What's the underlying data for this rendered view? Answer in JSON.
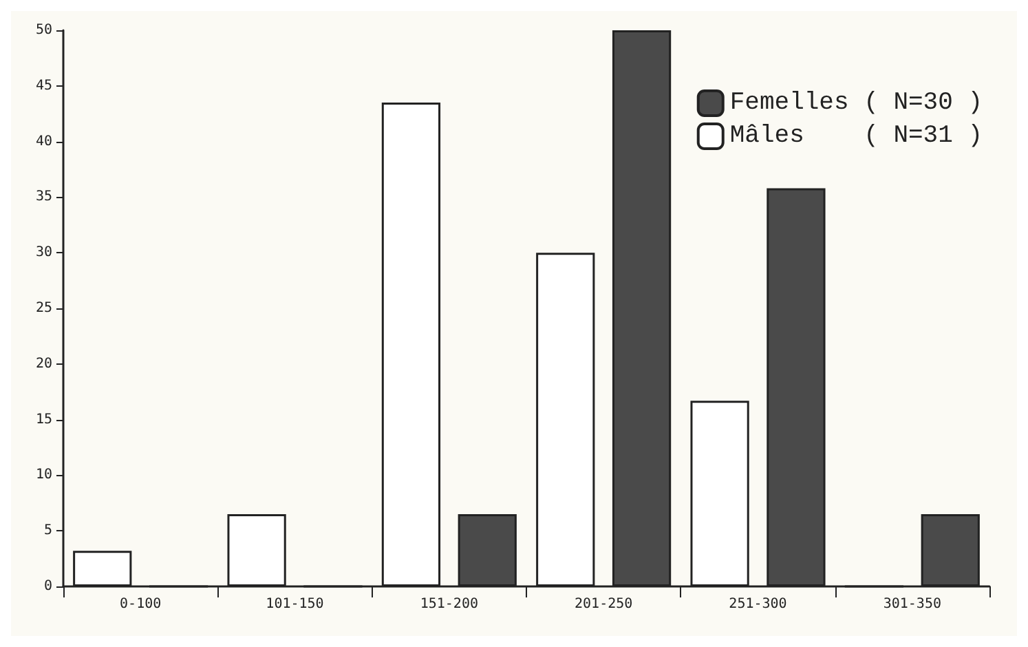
{
  "chart_data": {
    "type": "bar",
    "categories": [
      "0-100",
      "101-150",
      "151-200",
      "201-250",
      "251-300",
      "301-350"
    ],
    "series": [
      {
        "name": "Mâles    ( N=31 )",
        "color": "#ffffff",
        "values": [
          3.2,
          6.5,
          43.5,
          30,
          16.7,
          0
        ]
      },
      {
        "name": "Femelles ( N=30 )",
        "color": "#4a4a4a",
        "values": [
          0,
          0,
          6.5,
          50,
          35.8,
          6.5
        ]
      }
    ],
    "ylim": [
      0,
      50
    ],
    "yticks": [
      0,
      5,
      10,
      15,
      20,
      25,
      30,
      35,
      40,
      45,
      50
    ],
    "grid": false,
    "legend": "top right"
  }
}
